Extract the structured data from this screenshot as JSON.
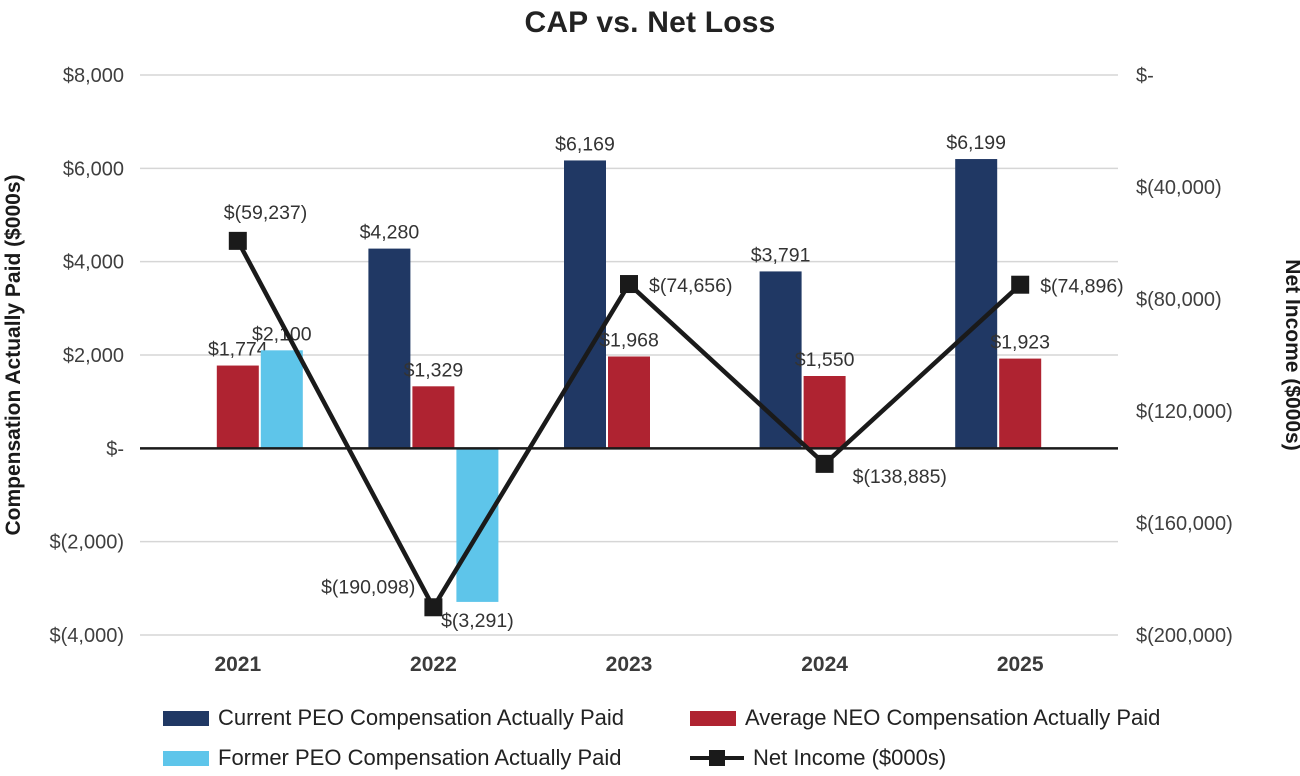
{
  "chart_data": {
    "type": "combo-bar-line",
    "title": "CAP vs. Net Loss",
    "categories": [
      "2021",
      "2022",
      "2023",
      "2024",
      "2025"
    ],
    "series": [
      {
        "name": "Current PEO Compensation Actually Paid",
        "type": "bar",
        "axis": "left",
        "color": "#203864",
        "values": [
          null,
          4280,
          6169,
          3791,
          6199
        ],
        "labels": [
          "",
          "$4,280",
          "$6,169",
          "$3,791",
          "$6,199"
        ]
      },
      {
        "name": "Average NEO Compensation Actually Paid",
        "type": "bar",
        "axis": "left",
        "color": "#AF2331",
        "values": [
          1774,
          1329,
          1968,
          1550,
          1923
        ],
        "labels": [
          "$1,774",
          "$1,329",
          "$1,968",
          "$1,550",
          "$1,923"
        ]
      },
      {
        "name": "Former PEO Compensation Actually Paid",
        "type": "bar",
        "axis": "left",
        "color": "#5EC5EA",
        "values": [
          2100,
          -3291,
          null,
          null,
          null
        ],
        "labels": [
          "$2,100",
          "$(3,291)",
          "",
          "",
          ""
        ]
      },
      {
        "name": "Net Income ($000s)",
        "type": "line",
        "axis": "right",
        "color": "#1A1A1A",
        "values": [
          -59237,
          -190098,
          -74656,
          -138885,
          -74896
        ],
        "labels": [
          "$(59,237)",
          "$(190,098)",
          "$(74,656)",
          "$(138,885)",
          "$(74,896)"
        ]
      }
    ],
    "left_axis": {
      "label": "Compensation Actually Paid ($000s)",
      "min": -4000,
      "max": 8000,
      "ticks": [
        "$8,000",
        "$6,000",
        "$4,000",
        "$2,000",
        "$-",
        "$(2,000)",
        "$(4,000)"
      ]
    },
    "right_axis": {
      "label": "Net Income ($000s)",
      "min": -200000,
      "max": 0,
      "ticks": [
        "$-",
        "$(40,000)",
        "$(80,000)",
        "$(120,000)",
        "$(160,000)",
        "$(200,000)"
      ]
    },
    "grid": true,
    "legend_position": "bottom"
  }
}
